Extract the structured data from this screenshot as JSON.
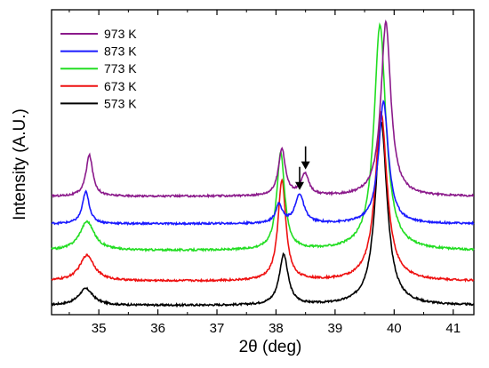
{
  "chart_data": {
    "type": "line",
    "title": "",
    "xlabel": "2θ (deg)",
    "ylabel": "Intensity (A.U.)",
    "xlim": [
      34.2,
      41.35
    ],
    "ylim": [
      0,
      1
    ],
    "x_ticks": [
      35,
      36,
      37,
      38,
      39,
      40,
      41
    ],
    "y_ticks_shown": false,
    "grid": false,
    "legend_position": "top-left",
    "series": [
      {
        "name": "973 K",
        "color": "#8b1a8b",
        "baseline": 0.388,
        "peaks": [
          {
            "x": 34.84,
            "height": 0.135,
            "width": 0.07
          },
          {
            "x": 38.1,
            "height": 0.155,
            "width": 0.07
          },
          {
            "x": 38.49,
            "height": 0.07,
            "width": 0.08
          },
          {
            "x": 39.86,
            "height": 0.57,
            "width": 0.1
          }
        ],
        "annotation": {
          "type": "arrow",
          "x": 38.5
        }
      },
      {
        "name": "873 K",
        "color": "#1a1aff",
        "baseline": 0.298,
        "peaks": [
          {
            "x": 34.78,
            "height": 0.105,
            "width": 0.07
          },
          {
            "x": 38.05,
            "height": 0.06,
            "width": 0.07
          },
          {
            "x": 38.4,
            "height": 0.095,
            "width": 0.09
          },
          {
            "x": 39.82,
            "height": 0.4,
            "width": 0.1
          }
        ],
        "annotation": {
          "type": "arrow",
          "x": 38.4
        }
      },
      {
        "name": "773 K",
        "color": "#22dd22",
        "baseline": 0.21,
        "peaks": [
          {
            "x": 34.8,
            "height": 0.095,
            "width": 0.15
          },
          {
            "x": 38.08,
            "height": 0.32,
            "width": 0.08
          },
          {
            "x": 39.76,
            "height": 0.74,
            "width": 0.12
          }
        ]
      },
      {
        "name": "673 K",
        "color": "#ee1111",
        "baseline": 0.11,
        "peaks": [
          {
            "x": 34.8,
            "height": 0.085,
            "width": 0.15
          },
          {
            "x": 38.1,
            "height": 0.33,
            "width": 0.08
          },
          {
            "x": 39.78,
            "height": 0.55,
            "width": 0.12
          }
        ]
      },
      {
        "name": "573 K",
        "color": "#000000",
        "baseline": 0.03,
        "peaks": [
          {
            "x": 34.78,
            "height": 0.055,
            "width": 0.15
          },
          {
            "x": 38.13,
            "height": 0.165,
            "width": 0.09
          },
          {
            "x": 39.78,
            "height": 0.6,
            "width": 0.12
          }
        ]
      }
    ]
  }
}
